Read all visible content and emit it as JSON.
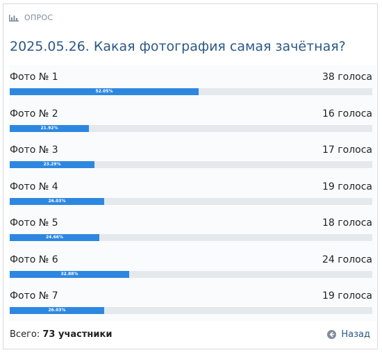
{
  "poll": {
    "header_label": "ОПРОС",
    "title": "2025.05.26. Какая фотография самая зачётная?",
    "options": [
      {
        "label": "Фото № 1",
        "votes": "38 голоса",
        "percent": "52.05%",
        "fraction": 0.5205
      },
      {
        "label": "Фото № 2",
        "votes": "16 голоса",
        "percent": "21.92%",
        "fraction": 0.2192
      },
      {
        "label": "Фото № 3",
        "votes": "17 голоса",
        "percent": "23.29%",
        "fraction": 0.2329
      },
      {
        "label": "Фото № 4",
        "votes": "19 голоса",
        "percent": "26.03%",
        "fraction": 0.2603
      },
      {
        "label": "Фото № 5",
        "votes": "18 голоса",
        "percent": "24.66%",
        "fraction": 0.2466
      },
      {
        "label": "Фото № 6",
        "votes": "24 голоса",
        "percent": "32.88%",
        "fraction": 0.3288
      },
      {
        "label": "Фото № 7",
        "votes": "19 голоса",
        "percent": "26.03%",
        "fraction": 0.2603
      }
    ],
    "footer": {
      "total_prefix": "Всего:",
      "total_value": "73 участники",
      "back_label": "Назад"
    },
    "icons": {
      "header": "bar-chart-icon",
      "back": "arrow-left-circle-icon"
    },
    "colors": {
      "accent": "#2d87e0",
      "title": "#2a5885",
      "track": "#e5e8ec"
    }
  }
}
